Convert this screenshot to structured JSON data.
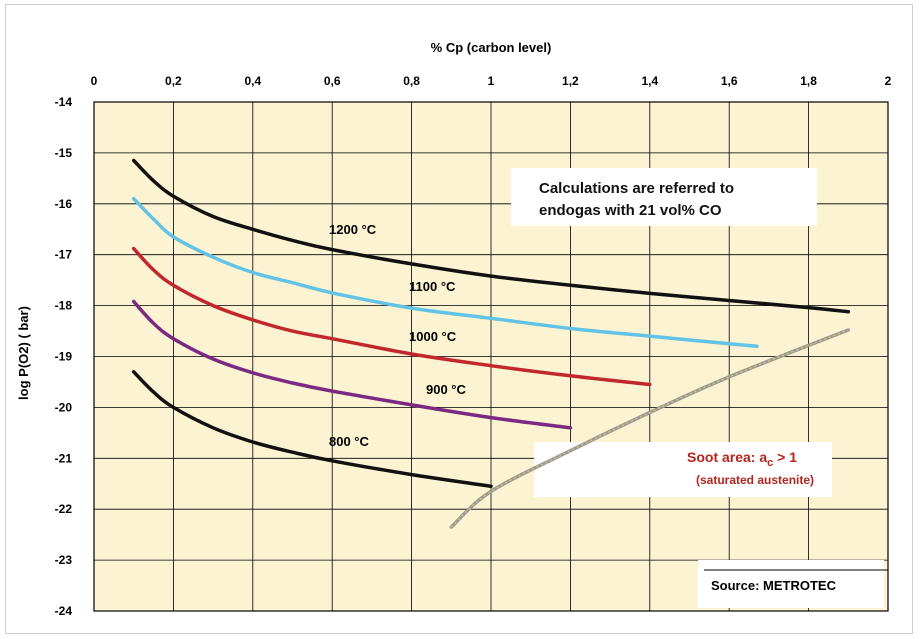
{
  "chart_data": {
    "type": "line",
    "xlabel": "% Cp (carbon level)",
    "ylabel": "log P(O2) ( bar)",
    "xlim": [
      0,
      2
    ],
    "ylim": [
      -24,
      -14
    ],
    "x_ticks": [
      "0",
      "0,2",
      "0,4",
      "0,6",
      "0,8",
      "1",
      "1,2",
      "1,4",
      "1,6",
      "1,8",
      "2"
    ],
    "y_ticks": [
      "-14",
      "-15",
      "-16",
      "-17",
      "-18",
      "-19",
      "-20",
      "-21",
      "-22",
      "-23",
      "-24"
    ],
    "grid": true,
    "background_color": "#fbf3d2",
    "series": [
      {
        "name": "1200 °C",
        "color": "#111111",
        "x": [
          0.1,
          0.15,
          0.2,
          0.3,
          0.4,
          0.5,
          0.6,
          0.8,
          1.0,
          1.2,
          1.4,
          1.6,
          1.8,
          1.9
        ],
        "y": [
          -15.15,
          -15.55,
          -15.85,
          -16.25,
          -16.5,
          -16.72,
          -16.9,
          -17.18,
          -17.42,
          -17.6,
          -17.76,
          -17.9,
          -18.04,
          -18.12
        ]
      },
      {
        "name": "1100 °C",
        "color": "#63c3e6",
        "x": [
          0.1,
          0.15,
          0.2,
          0.3,
          0.4,
          0.5,
          0.6,
          0.8,
          1.0,
          1.2,
          1.4,
          1.6,
          1.67
        ],
        "y": [
          -15.9,
          -16.3,
          -16.65,
          -17.05,
          -17.35,
          -17.55,
          -17.75,
          -18.05,
          -18.25,
          -18.45,
          -18.6,
          -18.75,
          -18.8
        ]
      },
      {
        "name": "1000 °C",
        "color": "#c1272d",
        "x": [
          0.1,
          0.15,
          0.2,
          0.3,
          0.4,
          0.5,
          0.6,
          0.8,
          1.0,
          1.2,
          1.4
        ],
        "y": [
          -16.88,
          -17.3,
          -17.6,
          -18.0,
          -18.28,
          -18.5,
          -18.65,
          -18.95,
          -19.18,
          -19.38,
          -19.55
        ]
      },
      {
        "name": "900 °C",
        "color": "#7a2a82",
        "x": [
          0.1,
          0.15,
          0.2,
          0.3,
          0.4,
          0.5,
          0.6,
          0.8,
          1.0,
          1.2
        ],
        "y": [
          -17.92,
          -18.35,
          -18.65,
          -19.05,
          -19.32,
          -19.52,
          -19.68,
          -19.95,
          -20.2,
          -20.4
        ]
      },
      {
        "name": "800 °C",
        "color": "#111111",
        "x": [
          0.1,
          0.15,
          0.2,
          0.3,
          0.4,
          0.5,
          0.6,
          0.8,
          1.0
        ],
        "y": [
          -19.3,
          -19.7,
          -20.0,
          -20.4,
          -20.68,
          -20.88,
          -21.05,
          -21.32,
          -21.55
        ]
      },
      {
        "name": "",
        "color": "#9a9a9a",
        "style": "boundary",
        "x": [
          0.9,
          1.0,
          1.2,
          1.4,
          1.6,
          1.9
        ],
        "y": [
          -22.35,
          -21.65,
          -20.85,
          -20.1,
          -19.4,
          -18.48
        ]
      }
    ],
    "annotations": {
      "note_line1": "Calculations are referred  to",
      "note_line2": "endogas with 21 vol% CO",
      "soot_main": "Soot area: a",
      "soot_sub": "c",
      "soot_rest": "  > 1",
      "soot_line2": "(saturated austenite)",
      "source": "Source: METROTEC"
    },
    "soot_color": "#b3261e"
  }
}
